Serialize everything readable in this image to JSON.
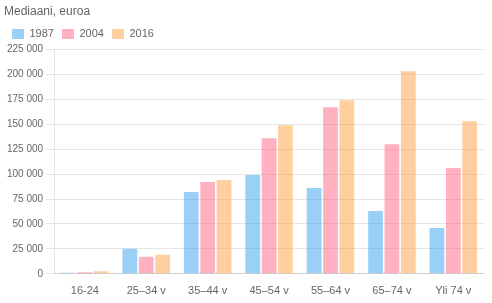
{
  "chart_data": {
    "type": "bar",
    "ylabel": "Mediaani, euroa",
    "categories": [
      "16-24",
      "25–34 v",
      "35–44 v",
      "45–54 v",
      "55–64 v",
      "65–74 v",
      "Yli 74 v"
    ],
    "series": [
      {
        "name": "1987",
        "values": [
          1000,
          25000,
          82000,
          99000,
          86000,
          63000,
          46000
        ]
      },
      {
        "name": "2004",
        "values": [
          1500,
          17000,
          92000,
          136000,
          167000,
          130000,
          106000
        ]
      },
      {
        "name": "2016",
        "values": [
          2500,
          19000,
          94000,
          149000,
          174000,
          203000,
          153000
        ]
      }
    ],
    "ylim": [
      0,
      225000
    ],
    "yticks": [
      0,
      {
        "value": 25000,
        "label": "25 000"
      },
      {
        "value": 50000,
        "label": "50 000"
      },
      {
        "value": 75000,
        "label": "75 000"
      },
      {
        "value": 100000,
        "label": "100 000"
      },
      {
        "value": 125000,
        "label": "125 000"
      },
      {
        "value": 150000,
        "label": "150 000"
      },
      {
        "value": 175000,
        "label": "175 000"
      },
      {
        "value": 200000,
        "label": "200 000"
      },
      {
        "value": 225000,
        "label": "225 000"
      }
    ],
    "grid": true,
    "legend": "upper left"
  }
}
